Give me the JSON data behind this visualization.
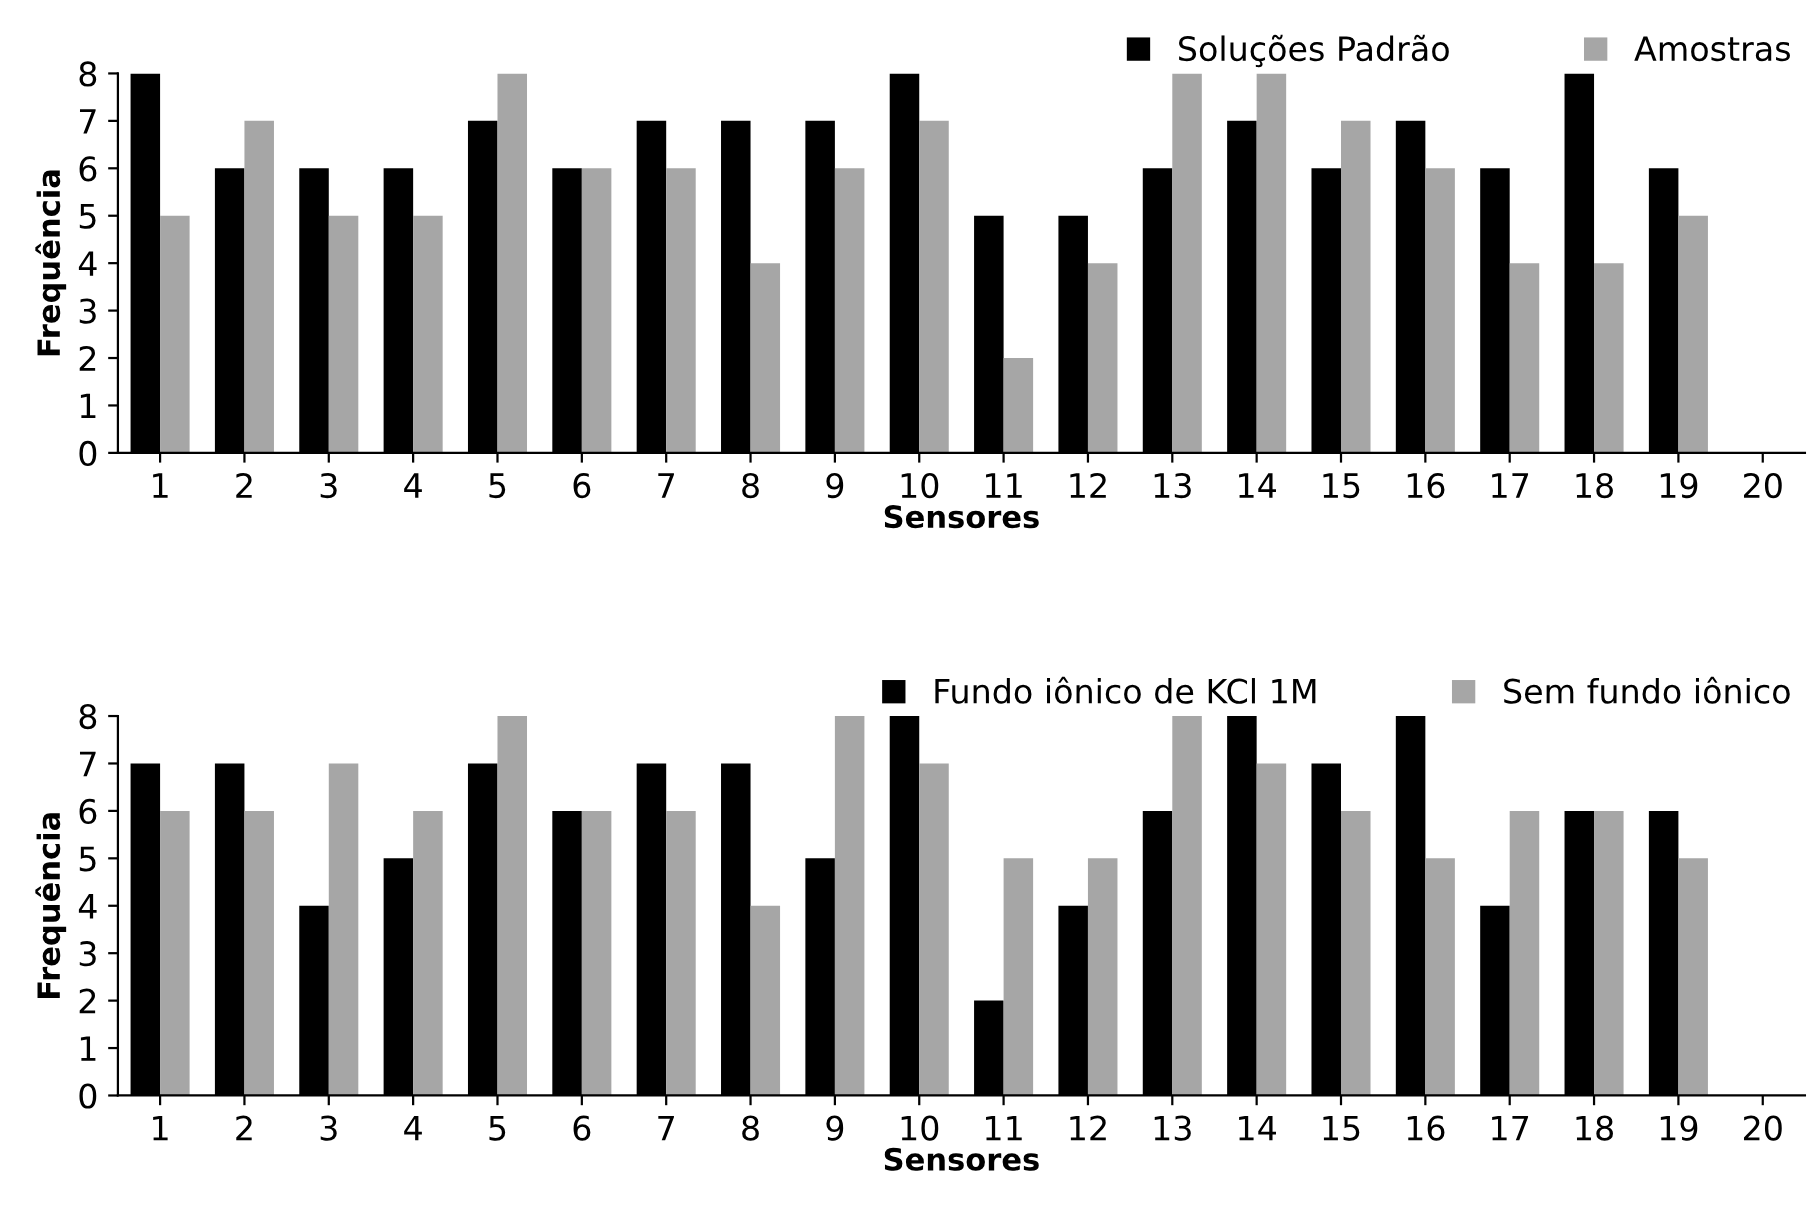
{
  "chart_data": [
    {
      "type": "bar",
      "xlabel": "Sensores",
      "ylabel": "Frequência",
      "categories": [
        "1",
        "2",
        "3",
        "4",
        "5",
        "6",
        "7",
        "8",
        "9",
        "10",
        "11",
        "12",
        "13",
        "14",
        "15",
        "16",
        "17",
        "18",
        "19",
        "20"
      ],
      "ylim": [
        0,
        8
      ],
      "yticks": [
        0,
        1,
        2,
        3,
        4,
        5,
        6,
        7,
        8
      ],
      "grid": false,
      "legend": "top right",
      "series": [
        {
          "name": "Soluções Padrão",
          "color": "#000000",
          "values": [
            8,
            6,
            6,
            6,
            7,
            6,
            7,
            7,
            7,
            8,
            5,
            5,
            6,
            7,
            6,
            7,
            6,
            8,
            6,
            null
          ]
        },
        {
          "name": "Amostras",
          "color": "#a6a6a6",
          "values": [
            5,
            7,
            5,
            5,
            8,
            6,
            6,
            4,
            6,
            7,
            2,
            4,
            8,
            8,
            7,
            6,
            4,
            4,
            5,
            null
          ]
        }
      ]
    },
    {
      "type": "bar",
      "xlabel": "Sensores",
      "ylabel": "Frequência",
      "categories": [
        "1",
        "2",
        "3",
        "4",
        "5",
        "6",
        "7",
        "8",
        "9",
        "10",
        "11",
        "12",
        "13",
        "14",
        "15",
        "16",
        "17",
        "18",
        "19",
        "20"
      ],
      "ylim": [
        0,
        8
      ],
      "yticks": [
        0,
        1,
        2,
        3,
        4,
        5,
        6,
        7,
        8
      ],
      "grid": false,
      "legend": "top right",
      "series": [
        {
          "name": "Fundo iônico de KCl 1M",
          "color": "#000000",
          "values": [
            7,
            7,
            4,
            5,
            7,
            6,
            7,
            7,
            5,
            8,
            2,
            4,
            6,
            8,
            7,
            8,
            4,
            6,
            6,
            null
          ]
        },
        {
          "name": "Sem fundo iônico",
          "color": "#a6a6a6",
          "values": [
            6,
            6,
            7,
            6,
            8,
            6,
            6,
            4,
            8,
            7,
            5,
            5,
            8,
            7,
            6,
            5,
            6,
            6,
            5,
            null
          ]
        }
      ]
    }
  ]
}
